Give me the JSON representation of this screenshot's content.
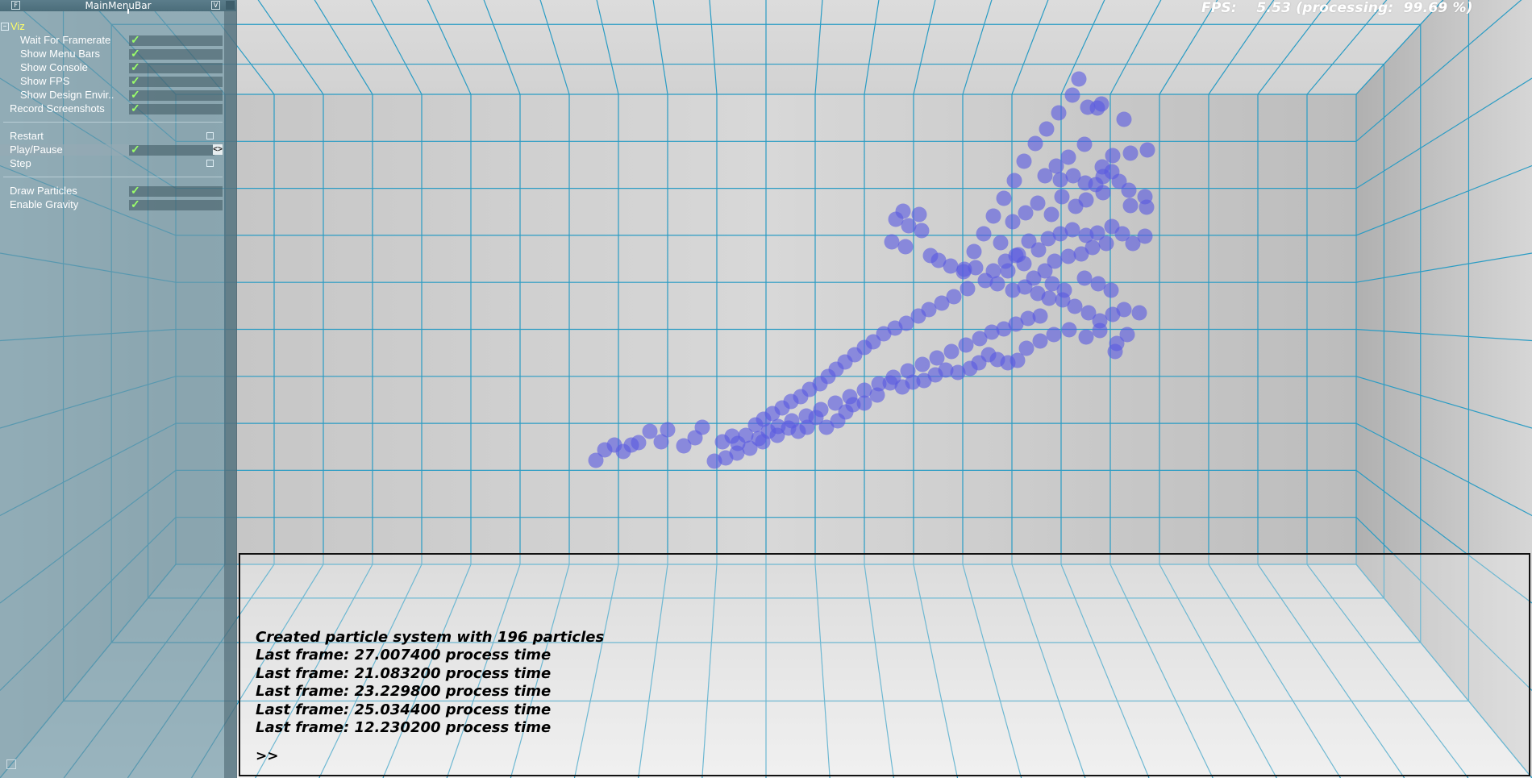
{
  "fps": {
    "text": "FPS:    5.53 (processing:  99.69 %)"
  },
  "menu": {
    "title": "MainMenuBar",
    "section": {
      "label": "Viz",
      "expanded": true
    },
    "viz_items": [
      {
        "label": "Wait For Framerate",
        "checked": true
      },
      {
        "label": "Show Menu Bars",
        "checked": true
      },
      {
        "label": "Show Console",
        "checked": true
      },
      {
        "label": "Show FPS",
        "checked": true
      },
      {
        "label": "Show Design Envir..",
        "checked": true
      }
    ],
    "record": {
      "label": "Record Screenshots",
      "checked": true
    },
    "controls": [
      {
        "label": "Restart",
        "type": "button"
      },
      {
        "label": "Play/Pause",
        "type": "toggle",
        "checked": true
      },
      {
        "label": "Step",
        "type": "button"
      }
    ],
    "options": [
      {
        "label": "Draw Particles",
        "checked": true
      },
      {
        "label": "Enable Gravity",
        "checked": true
      }
    ],
    "check_glyph": "✓",
    "arrows_glyph": "<>"
  },
  "console": {
    "lines": [
      "Created particle system with 196 particles",
      "Last frame: 27.007400 process time",
      "Last frame: 21.083200 process time",
      "Last frame: 23.229800 process time",
      "Last frame: 25.034400 process time",
      "Last frame: 12.230200 process time"
    ],
    "prompt": ">>"
  },
  "colors": {
    "grid": "#2a9cc4",
    "particle": "#5a5ae0",
    "menu_check": "#9bff6a",
    "section_label": "#ffff66"
  }
}
